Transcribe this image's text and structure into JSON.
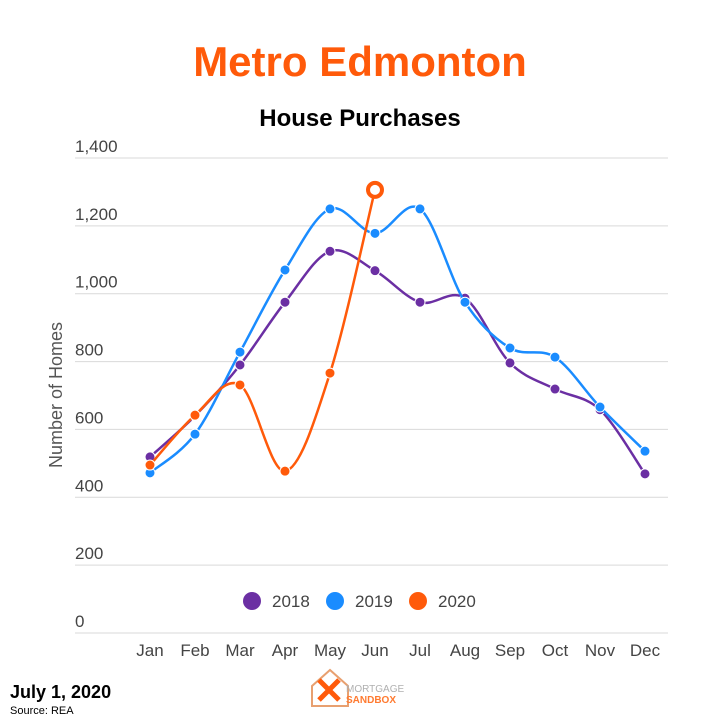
{
  "chart_data": {
    "type": "line",
    "title": "Metro Edmonton",
    "subtitle": "House Purchases",
    "y_label": "Number of Homes",
    "categories": [
      "Jan",
      "Feb",
      "Mar",
      "Apr",
      "May",
      "Jun",
      "Jul",
      "Aug",
      "Sep",
      "Oct",
      "Nov",
      "Dec"
    ],
    "series": [
      {
        "name": "2018",
        "color": "#6b2fa3",
        "values": [
          519,
          640,
          790,
          975,
          1125,
          1068,
          975,
          987,
          796,
          719,
          658,
          469
        ]
      },
      {
        "name": "2019",
        "color": "#1a8cff",
        "values": [
          472,
          586,
          828,
          1070,
          1250,
          1178,
          1250,
          975,
          840,
          813,
          666,
          536
        ]
      },
      {
        "name": "2020",
        "color": "#ff5a0a",
        "values": [
          495,
          642,
          731,
          477,
          766,
          1306,
          null,
          null,
          null,
          null,
          null,
          null
        ]
      }
    ],
    "ylim": [
      0,
      1400
    ],
    "yticks": [
      0,
      200,
      400,
      600,
      800,
      {
        "value": 1000,
        "label": "1,000"
      },
      {
        "value": 1200,
        "label": "1,200"
      },
      {
        "value": 1400,
        "label": "1,400"
      }
    ],
    "grid": true,
    "legend": "bottom",
    "title_color": "#ff5a0a"
  },
  "footer": {
    "date": "July 1, 2020",
    "source": "Source: REA",
    "logo_top": "MORTGAGE",
    "logo_bottom": "SANDBOX"
  }
}
